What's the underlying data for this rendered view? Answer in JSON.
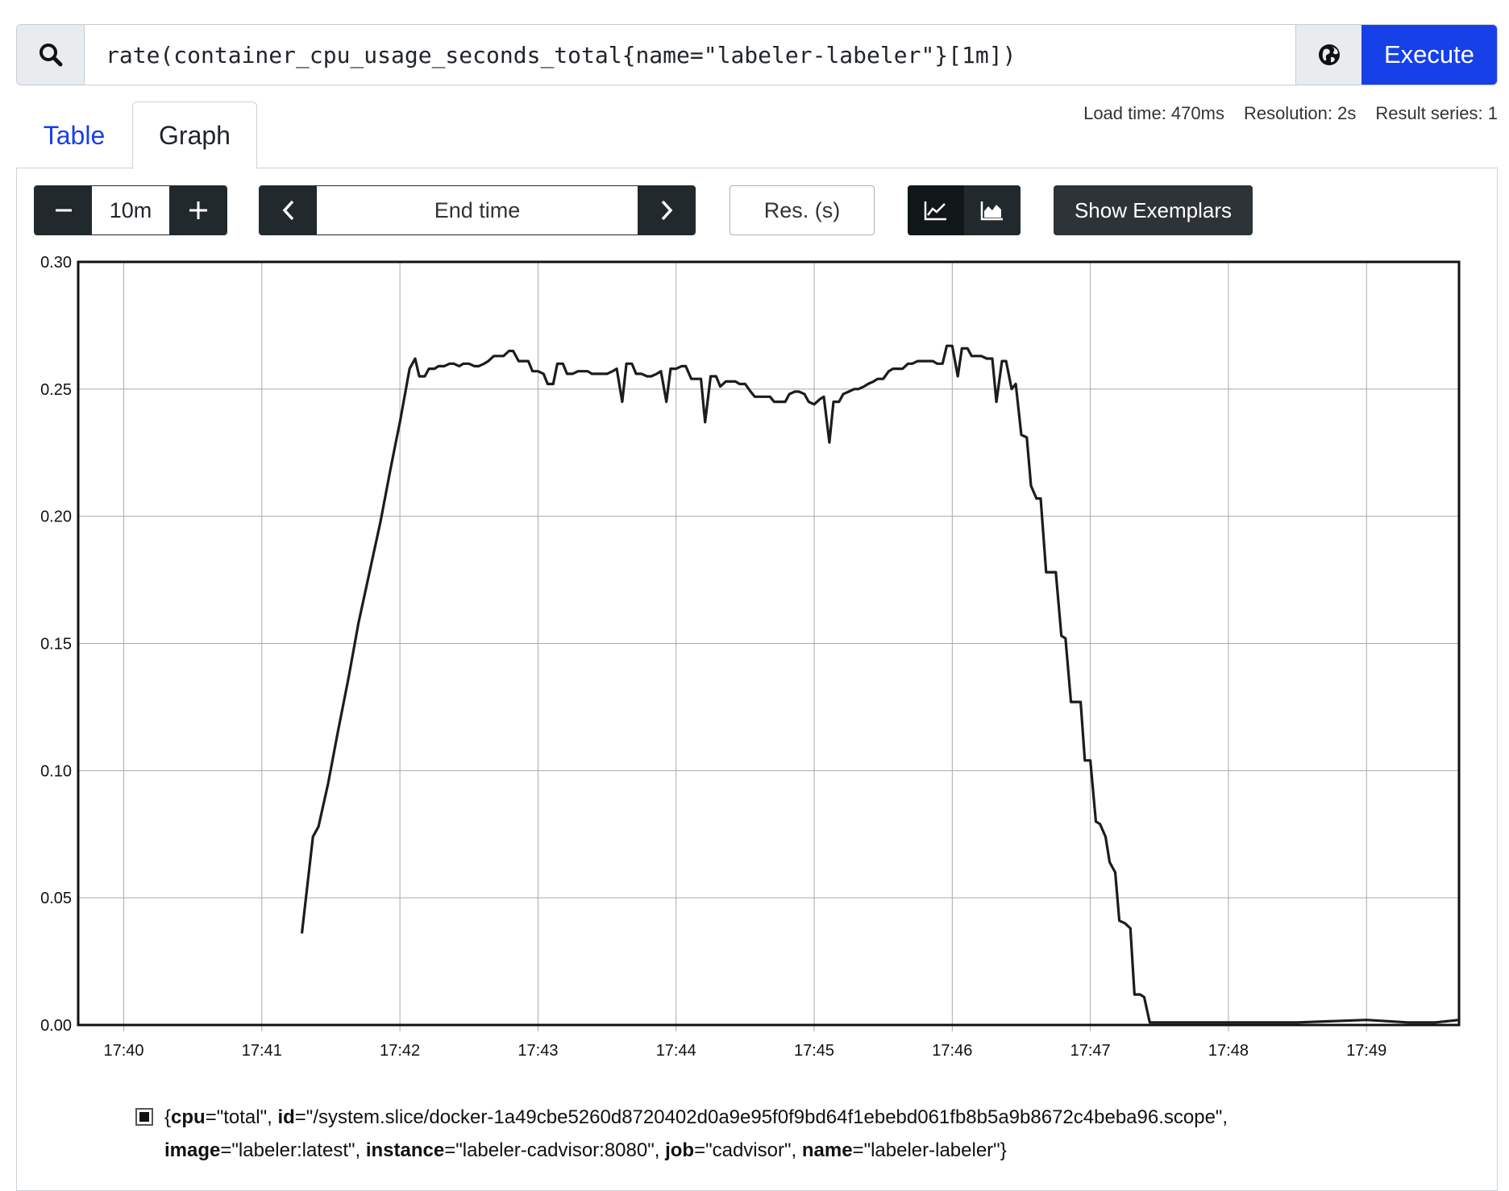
{
  "query": {
    "expression": "rate(container_cpu_usage_seconds_total{name=\"labeler-labeler\"}[1m])",
    "search_icon": "search-icon",
    "globe_icon": "globe-icon",
    "execute_label": "Execute"
  },
  "tabs": [
    {
      "label": "Table",
      "active": false
    },
    {
      "label": "Graph",
      "active": true
    }
  ],
  "stats": {
    "load_time": "Load time: 470ms",
    "resolution": "Resolution: 2s",
    "result_series": "Result series: 1"
  },
  "controls": {
    "range_value": "10m",
    "end_time_placeholder": "End time",
    "resolution_placeholder": "Res. (s)",
    "show_exemplars_label": "Show Exemplars"
  },
  "colors": {
    "accent": "#1640e8",
    "dark": "#22292c",
    "series": "#1a1d1f"
  },
  "chart_data": {
    "type": "line",
    "x_ticks": [
      "17:40",
      "17:41",
      "17:42",
      "17:43",
      "17:44",
      "17:45",
      "17:46",
      "17:47",
      "17:48",
      "17:49"
    ],
    "y_ticks": [
      "0.00",
      "0.05",
      "0.10",
      "0.15",
      "0.20",
      "0.25",
      "0.30"
    ],
    "xlim_minutes_after_1740": [
      -0.33,
      9.67
    ],
    "ylim": [
      0,
      0.3
    ],
    "grid": true,
    "series": [
      {
        "points": [
          [
            1.29,
            0.036
          ],
          [
            1.37,
            0.074
          ],
          [
            1.41,
            0.078
          ],
          [
            1.48,
            0.095
          ],
          [
            1.55,
            0.115
          ],
          [
            1.63,
            0.137
          ],
          [
            1.7,
            0.158
          ],
          [
            1.78,
            0.178
          ],
          [
            1.86,
            0.198
          ],
          [
            1.93,
            0.218
          ],
          [
            1.97,
            0.229
          ],
          [
            2.0,
            0.237
          ],
          [
            2.04,
            0.249
          ],
          [
            2.07,
            0.258
          ],
          [
            2.11,
            0.262
          ],
          [
            2.14,
            0.255
          ],
          [
            2.18,
            0.255
          ],
          [
            2.21,
            0.258
          ],
          [
            2.25,
            0.258
          ],
          [
            2.28,
            0.259
          ],
          [
            2.32,
            0.259
          ],
          [
            2.36,
            0.26
          ],
          [
            2.39,
            0.26
          ],
          [
            2.43,
            0.259
          ],
          [
            2.46,
            0.26
          ],
          [
            2.5,
            0.26
          ],
          [
            2.54,
            0.259
          ],
          [
            2.57,
            0.259
          ],
          [
            2.61,
            0.26
          ],
          [
            2.64,
            0.261
          ],
          [
            2.68,
            0.263
          ],
          [
            2.71,
            0.263
          ],
          [
            2.75,
            0.263
          ],
          [
            2.79,
            0.265
          ],
          [
            2.82,
            0.265
          ],
          [
            2.86,
            0.261
          ],
          [
            2.89,
            0.261
          ],
          [
            2.93,
            0.261
          ],
          [
            2.96,
            0.257
          ],
          [
            3.0,
            0.257
          ],
          [
            3.04,
            0.256
          ],
          [
            3.07,
            0.252
          ],
          [
            3.11,
            0.252
          ],
          [
            3.14,
            0.26
          ],
          [
            3.18,
            0.26
          ],
          [
            3.21,
            0.256
          ],
          [
            3.25,
            0.256
          ],
          [
            3.29,
            0.257
          ],
          [
            3.32,
            0.257
          ],
          [
            3.36,
            0.257
          ],
          [
            3.39,
            0.256
          ],
          [
            3.43,
            0.256
          ],
          [
            3.46,
            0.256
          ],
          [
            3.5,
            0.256
          ],
          [
            3.54,
            0.257
          ],
          [
            3.57,
            0.258
          ],
          [
            3.61,
            0.245
          ],
          [
            3.64,
            0.26
          ],
          [
            3.68,
            0.26
          ],
          [
            3.71,
            0.256
          ],
          [
            3.75,
            0.256
          ],
          [
            3.79,
            0.255
          ],
          [
            3.82,
            0.255
          ],
          [
            3.86,
            0.256
          ],
          [
            3.89,
            0.257
          ],
          [
            3.93,
            0.245
          ],
          [
            3.96,
            0.258
          ],
          [
            4.0,
            0.258
          ],
          [
            4.04,
            0.259
          ],
          [
            4.07,
            0.259
          ],
          [
            4.11,
            0.254
          ],
          [
            4.14,
            0.254
          ],
          [
            4.18,
            0.254
          ],
          [
            4.21,
            0.237
          ],
          [
            4.25,
            0.255
          ],
          [
            4.29,
            0.255
          ],
          [
            4.32,
            0.251
          ],
          [
            4.36,
            0.253
          ],
          [
            4.39,
            0.253
          ],
          [
            4.43,
            0.253
          ],
          [
            4.46,
            0.252
          ],
          [
            4.5,
            0.252
          ],
          [
            4.54,
            0.249
          ],
          [
            4.57,
            0.247
          ],
          [
            4.61,
            0.247
          ],
          [
            4.64,
            0.247
          ],
          [
            4.68,
            0.247
          ],
          [
            4.71,
            0.245
          ],
          [
            4.75,
            0.245
          ],
          [
            4.79,
            0.245
          ],
          [
            4.82,
            0.248
          ],
          [
            4.86,
            0.249
          ],
          [
            4.89,
            0.249
          ],
          [
            4.93,
            0.248
          ],
          [
            4.96,
            0.245
          ],
          [
            5.0,
            0.244
          ],
          [
            5.04,
            0.246
          ],
          [
            5.07,
            0.247
          ],
          [
            5.11,
            0.229
          ],
          [
            5.14,
            0.245
          ],
          [
            5.18,
            0.245
          ],
          [
            5.21,
            0.248
          ],
          [
            5.25,
            0.249
          ],
          [
            5.29,
            0.25
          ],
          [
            5.32,
            0.25
          ],
          [
            5.36,
            0.251
          ],
          [
            5.39,
            0.252
          ],
          [
            5.43,
            0.253
          ],
          [
            5.46,
            0.254
          ],
          [
            5.5,
            0.254
          ],
          [
            5.54,
            0.257
          ],
          [
            5.57,
            0.258
          ],
          [
            5.61,
            0.258
          ],
          [
            5.64,
            0.258
          ],
          [
            5.68,
            0.26
          ],
          [
            5.71,
            0.26
          ],
          [
            5.75,
            0.261
          ],
          [
            5.79,
            0.261
          ],
          [
            5.82,
            0.261
          ],
          [
            5.86,
            0.261
          ],
          [
            5.89,
            0.26
          ],
          [
            5.93,
            0.26
          ],
          [
            5.96,
            0.267
          ],
          [
            6.0,
            0.267
          ],
          [
            6.04,
            0.255
          ],
          [
            6.07,
            0.266
          ],
          [
            6.11,
            0.266
          ],
          [
            6.14,
            0.263
          ],
          [
            6.18,
            0.263
          ],
          [
            6.21,
            0.263
          ],
          [
            6.25,
            0.262
          ],
          [
            6.29,
            0.262
          ],
          [
            6.32,
            0.245
          ],
          [
            6.36,
            0.261
          ],
          [
            6.39,
            0.261
          ],
          [
            6.43,
            0.25
          ],
          [
            6.46,
            0.252
          ],
          [
            6.5,
            0.232
          ],
          [
            6.54,
            0.231
          ],
          [
            6.57,
            0.212
          ],
          [
            6.61,
            0.207
          ],
          [
            6.64,
            0.207
          ],
          [
            6.68,
            0.178
          ],
          [
            6.71,
            0.178
          ],
          [
            6.75,
            0.178
          ],
          [
            6.79,
            0.153
          ],
          [
            6.82,
            0.152
          ],
          [
            6.86,
            0.127
          ],
          [
            6.89,
            0.127
          ],
          [
            6.93,
            0.127
          ],
          [
            6.96,
            0.104
          ],
          [
            7.0,
            0.104
          ],
          [
            7.04,
            0.08
          ],
          [
            7.07,
            0.079
          ],
          [
            7.11,
            0.074
          ],
          [
            7.14,
            0.064
          ],
          [
            7.18,
            0.06
          ],
          [
            7.21,
            0.041
          ],
          [
            7.25,
            0.04
          ],
          [
            7.29,
            0.038
          ],
          [
            7.32,
            0.012
          ],
          [
            7.36,
            0.012
          ],
          [
            7.39,
            0.011
          ],
          [
            7.43,
            0.001
          ],
          [
            7.6,
            0.001
          ],
          [
            8.0,
            0.001
          ],
          [
            8.5,
            0.001
          ],
          [
            9.0,
            0.002
          ],
          [
            9.3,
            0.001
          ],
          [
            9.5,
            0.001
          ],
          [
            9.67,
            0.002
          ]
        ]
      }
    ]
  },
  "legend": {
    "pairs": [
      {
        "key": "cpu",
        "value": "=\"total\", "
      },
      {
        "key": "id",
        "value": "=\"/system.slice/docker-1a49cbe5260d8720402d0a9e95f0f9bd64f1ebebd061fb8b5a9b8672c4beba96.scope\","
      },
      {
        "key": "image",
        "value": "=\"labeler:latest\", "
      },
      {
        "key": "instance",
        "value": "=\"labeler-cadvisor:8080\", "
      },
      {
        "key": "job",
        "value": "=\"cadvisor\", "
      },
      {
        "key": "name",
        "value": "=\"labeler-labeler\"}"
      }
    ],
    "open_brace": "{"
  }
}
